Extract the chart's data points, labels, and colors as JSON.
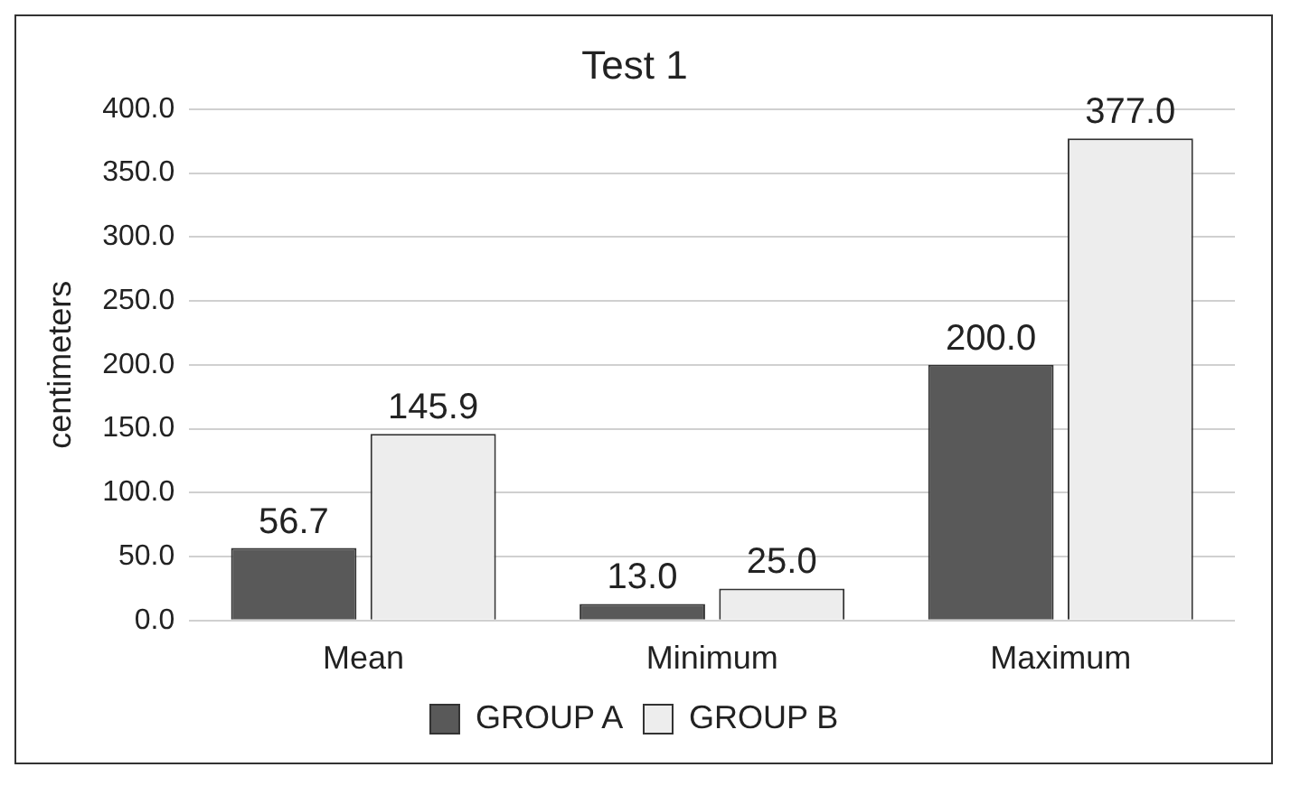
{
  "chart_data": {
    "type": "bar",
    "title": "Test 1",
    "ylabel": "centimeters",
    "categories": [
      "Mean",
      "Minimum",
      "Maximum"
    ],
    "series": [
      {
        "name": "GROUP A",
        "color": "#595959",
        "values": [
          56.7,
          13.0,
          200.0
        ],
        "value_labels": [
          "56.7",
          "13.0",
          "200.0"
        ]
      },
      {
        "name": "GROUP B",
        "color": "#ededed",
        "values": [
          145.9,
          25.0,
          377.0
        ],
        "value_labels": [
          "145.9",
          "25.0",
          "377.0"
        ]
      }
    ],
    "ylim": [
      0,
      400
    ],
    "yticks": [
      {
        "value": 0,
        "label": "0.0"
      },
      {
        "value": 50,
        "label": "50.0"
      },
      {
        "value": 100,
        "label": "100.0"
      },
      {
        "value": 150,
        "label": "150.0"
      },
      {
        "value": 200,
        "label": "200.0"
      },
      {
        "value": 250,
        "label": "250.0"
      },
      {
        "value": 300,
        "label": "300.0"
      },
      {
        "value": 350,
        "label": "350.0"
      },
      {
        "value": 400,
        "label": "400.0"
      }
    ],
    "grid": "y",
    "legend": "bottom"
  }
}
